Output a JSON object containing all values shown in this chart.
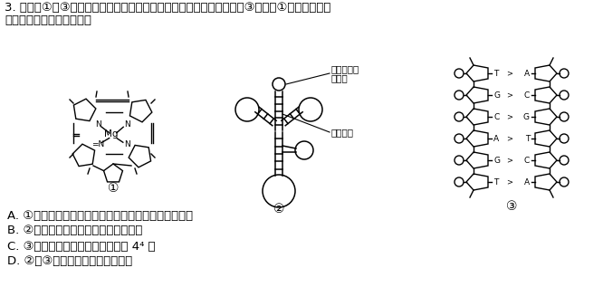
{
  "bg_color": "#ffffff",
  "title_line1": "3. 下图中①～③表示的是生物体内３种有机分子的局部或整体结构图，③是指导①合成的分子片",
  "title_line2": "段。下列有关说法错误的是",
  "label1": "①",
  "label2": "②",
  "label3": "③",
  "ann_jiehe": "结合氨基酸",
  "ann_debu": "的部位",
  "ann_jiandui": "熇基配对",
  "optionA": "A. ①体现了无机盐是细胞必不可少的某些化合物的成分",
  "optionB": "B. ②在基因表达的翻译过程中发挥作用",
  "optionC": "C. ③所示片段的熇基排列顺序共有 4⁴ 种",
  "optionD": "D. ②与③相比特有的熇基是尿噘啶",
  "font_size_title": 9.5,
  "font_size_option": 9.5
}
